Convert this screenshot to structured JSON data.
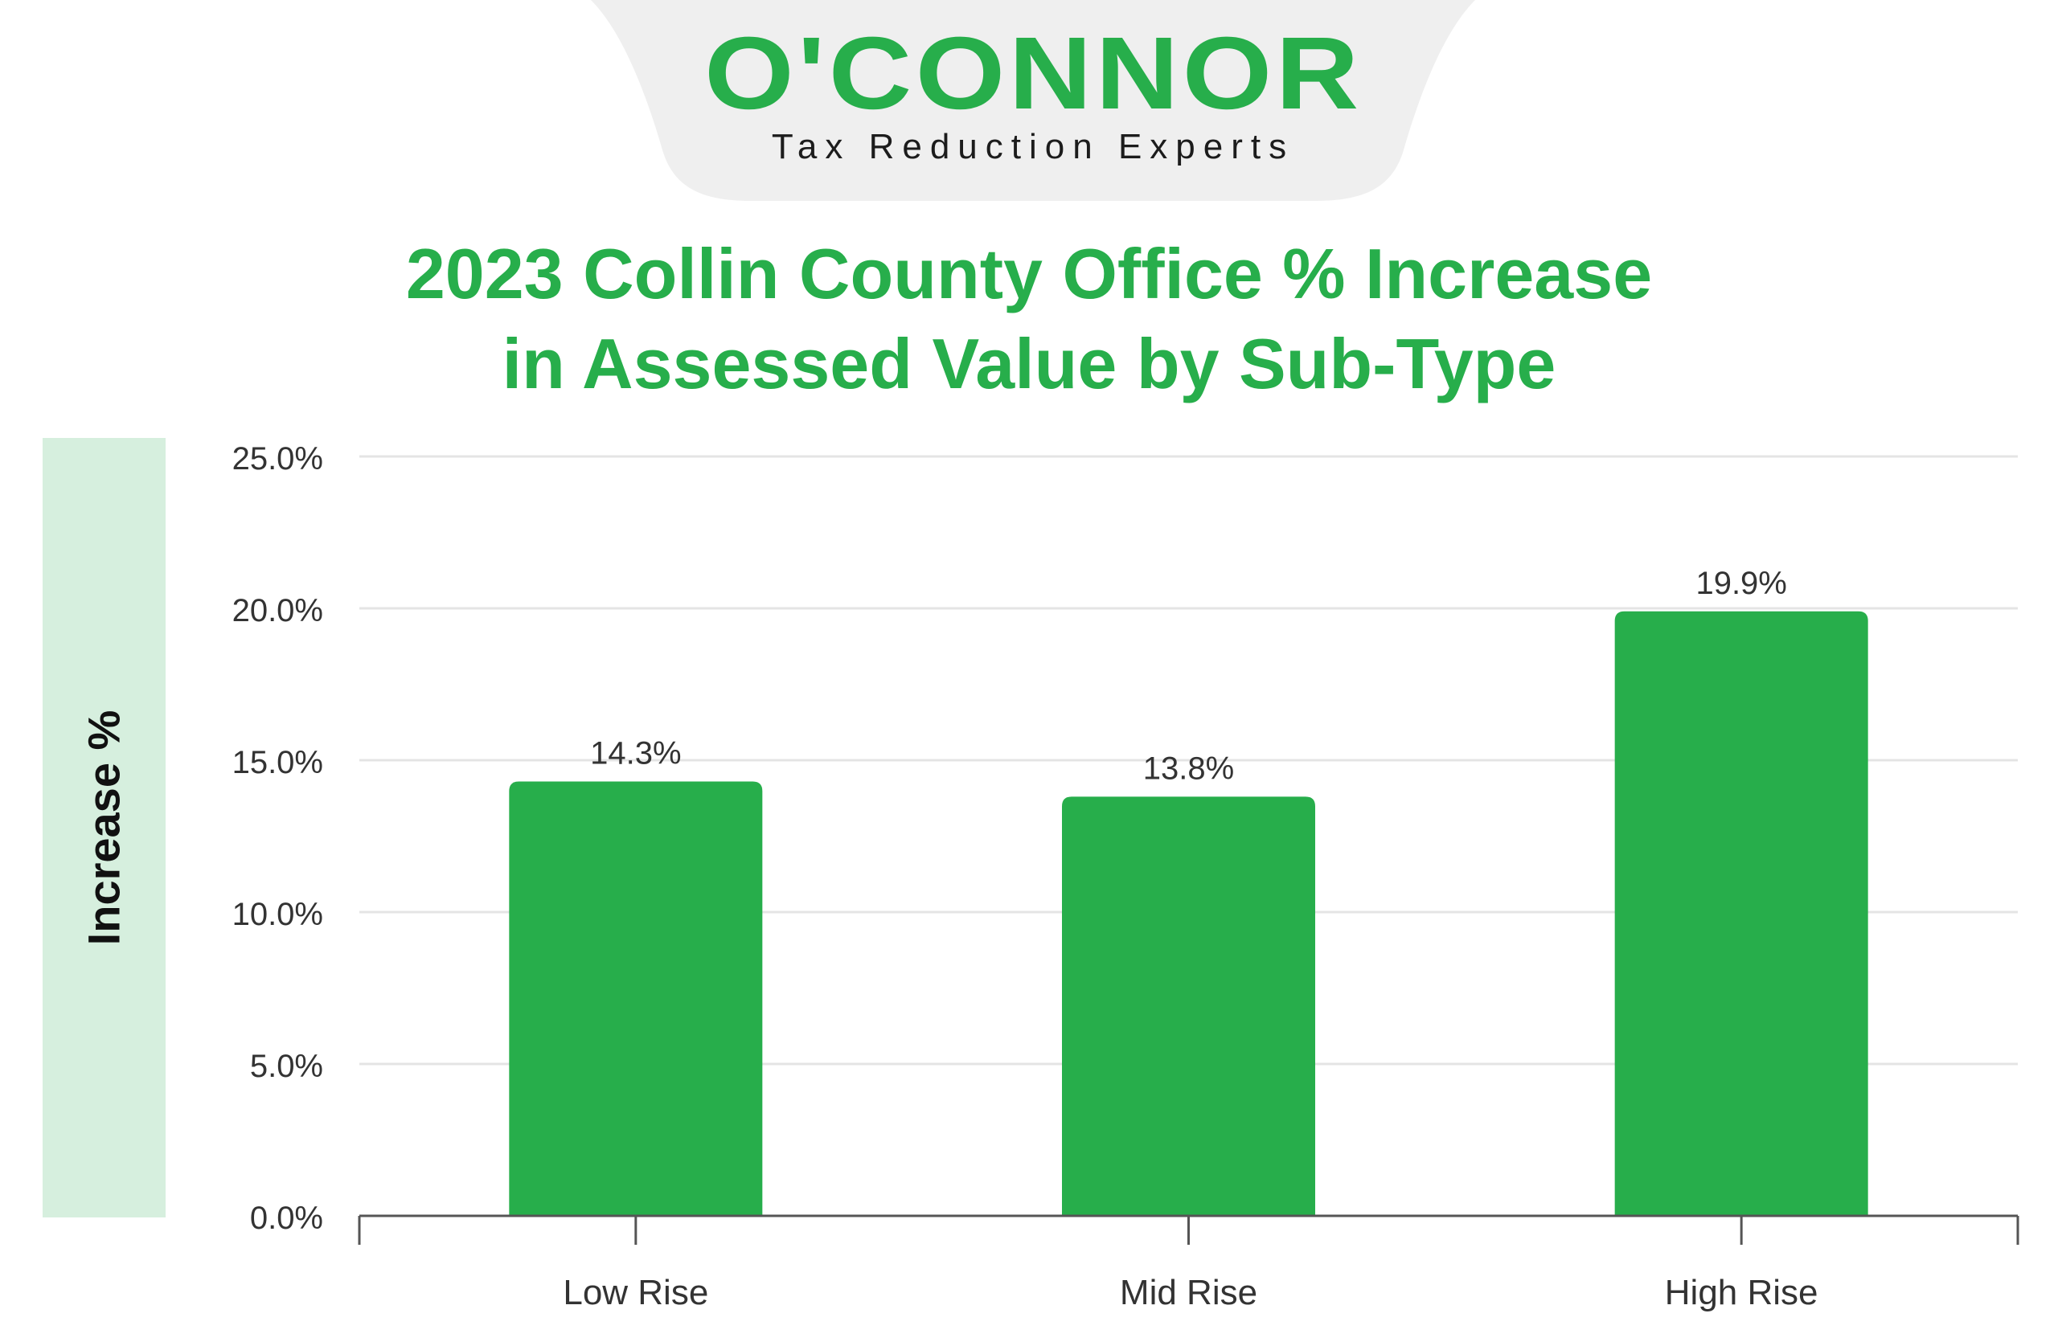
{
  "brand": {
    "name": "O'CONNOR",
    "tagline": "Tax Reduction Experts"
  },
  "colors": {
    "brand_green": "#27ae4b",
    "bar": "#27ae4b",
    "gridline": "#e4e4e4",
    "axis": "#555555",
    "ylabel_panel": "#d6efde",
    "logo_tab": "#efefef"
  },
  "chart_data": {
    "type": "bar",
    "title": "2023 Collin County Office % Increase in Assessed Value by Sub-Type",
    "title_lines": [
      "2023 Collin County Office % Increase",
      "in Assessed Value by Sub-Type"
    ],
    "xlabel": "",
    "ylabel": "Increase %",
    "categories": [
      "Low Rise",
      "Mid Rise",
      "High Rise"
    ],
    "values": [
      14.3,
      13.8,
      19.9
    ],
    "value_labels": [
      "14.3%",
      "13.8%",
      "19.9%"
    ],
    "ylim": [
      0,
      25
    ],
    "yticks": [
      0,
      5,
      10,
      15,
      20,
      25
    ],
    "ytick_labels": [
      "0.0%",
      "5.0%",
      "10.0%",
      "15.0%",
      "20.0%",
      "25.0%"
    ],
    "grid": true,
    "legend": "none"
  }
}
